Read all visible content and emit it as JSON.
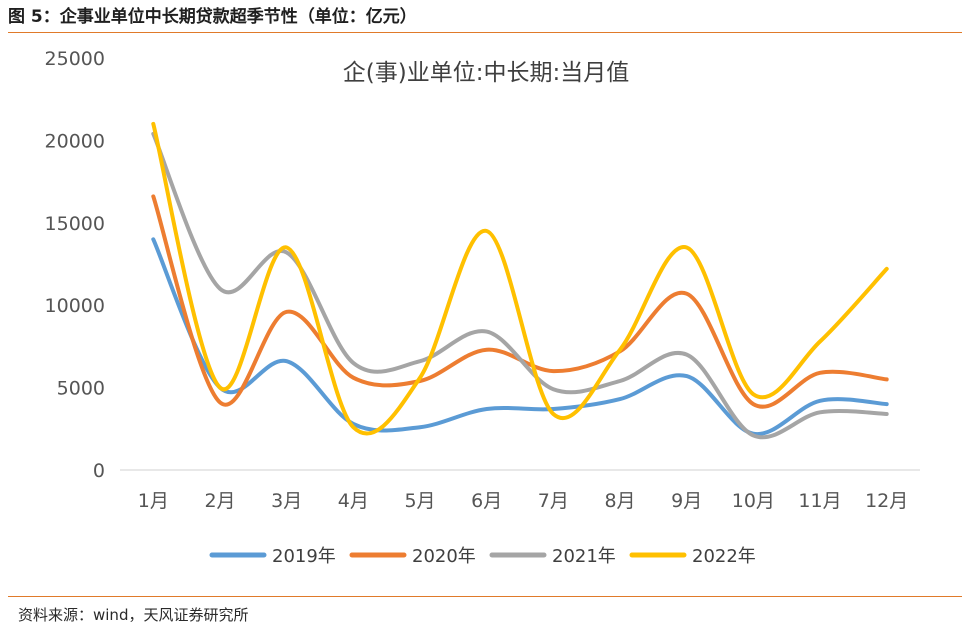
{
  "header": {
    "figure_title": "图 5：企事业单位中长期贷款超季节性（单位：亿元）"
  },
  "footer": {
    "source": "资料来源：wind，天风证券研究所"
  },
  "colors": {
    "rule": "#e07a2a"
  },
  "chart_data": {
    "type": "line",
    "title": "企(事)业单位:中长期:当月值",
    "xlabel": "",
    "ylabel": "",
    "categories": [
      "1月",
      "2月",
      "3月",
      "4月",
      "5月",
      "6月",
      "7月",
      "8月",
      "9月",
      "10月",
      "11月",
      "12月"
    ],
    "ylim": [
      0,
      25000
    ],
    "yticks": [
      0,
      5000,
      10000,
      15000,
      20000,
      25000
    ],
    "grid": false,
    "smooth": true,
    "legend_position": "bottom",
    "series": [
      {
        "name": "2019年",
        "color": "#5b9bd5",
        "values": [
          14000,
          5000,
          6600,
          2800,
          2600,
          3700,
          3700,
          4300,
          5700,
          2200,
          4200,
          4000
        ]
      },
      {
        "name": "2020年",
        "color": "#ed7d31",
        "values": [
          16600,
          4100,
          9600,
          5600,
          5400,
          7300,
          6000,
          7200,
          10700,
          4000,
          5900,
          5500
        ]
      },
      {
        "name": "2021年",
        "color": "#a5a5a5",
        "values": [
          20400,
          11000,
          13200,
          6500,
          6600,
          8400,
          4900,
          5400,
          7000,
          2100,
          3500,
          3400
        ]
      },
      {
        "name": "2022年",
        "color": "#ffc000",
        "values": [
          21000,
          5000,
          13500,
          2600,
          5600,
          14500,
          3400,
          7300,
          13500,
          4600,
          7800,
          12200
        ]
      }
    ]
  }
}
